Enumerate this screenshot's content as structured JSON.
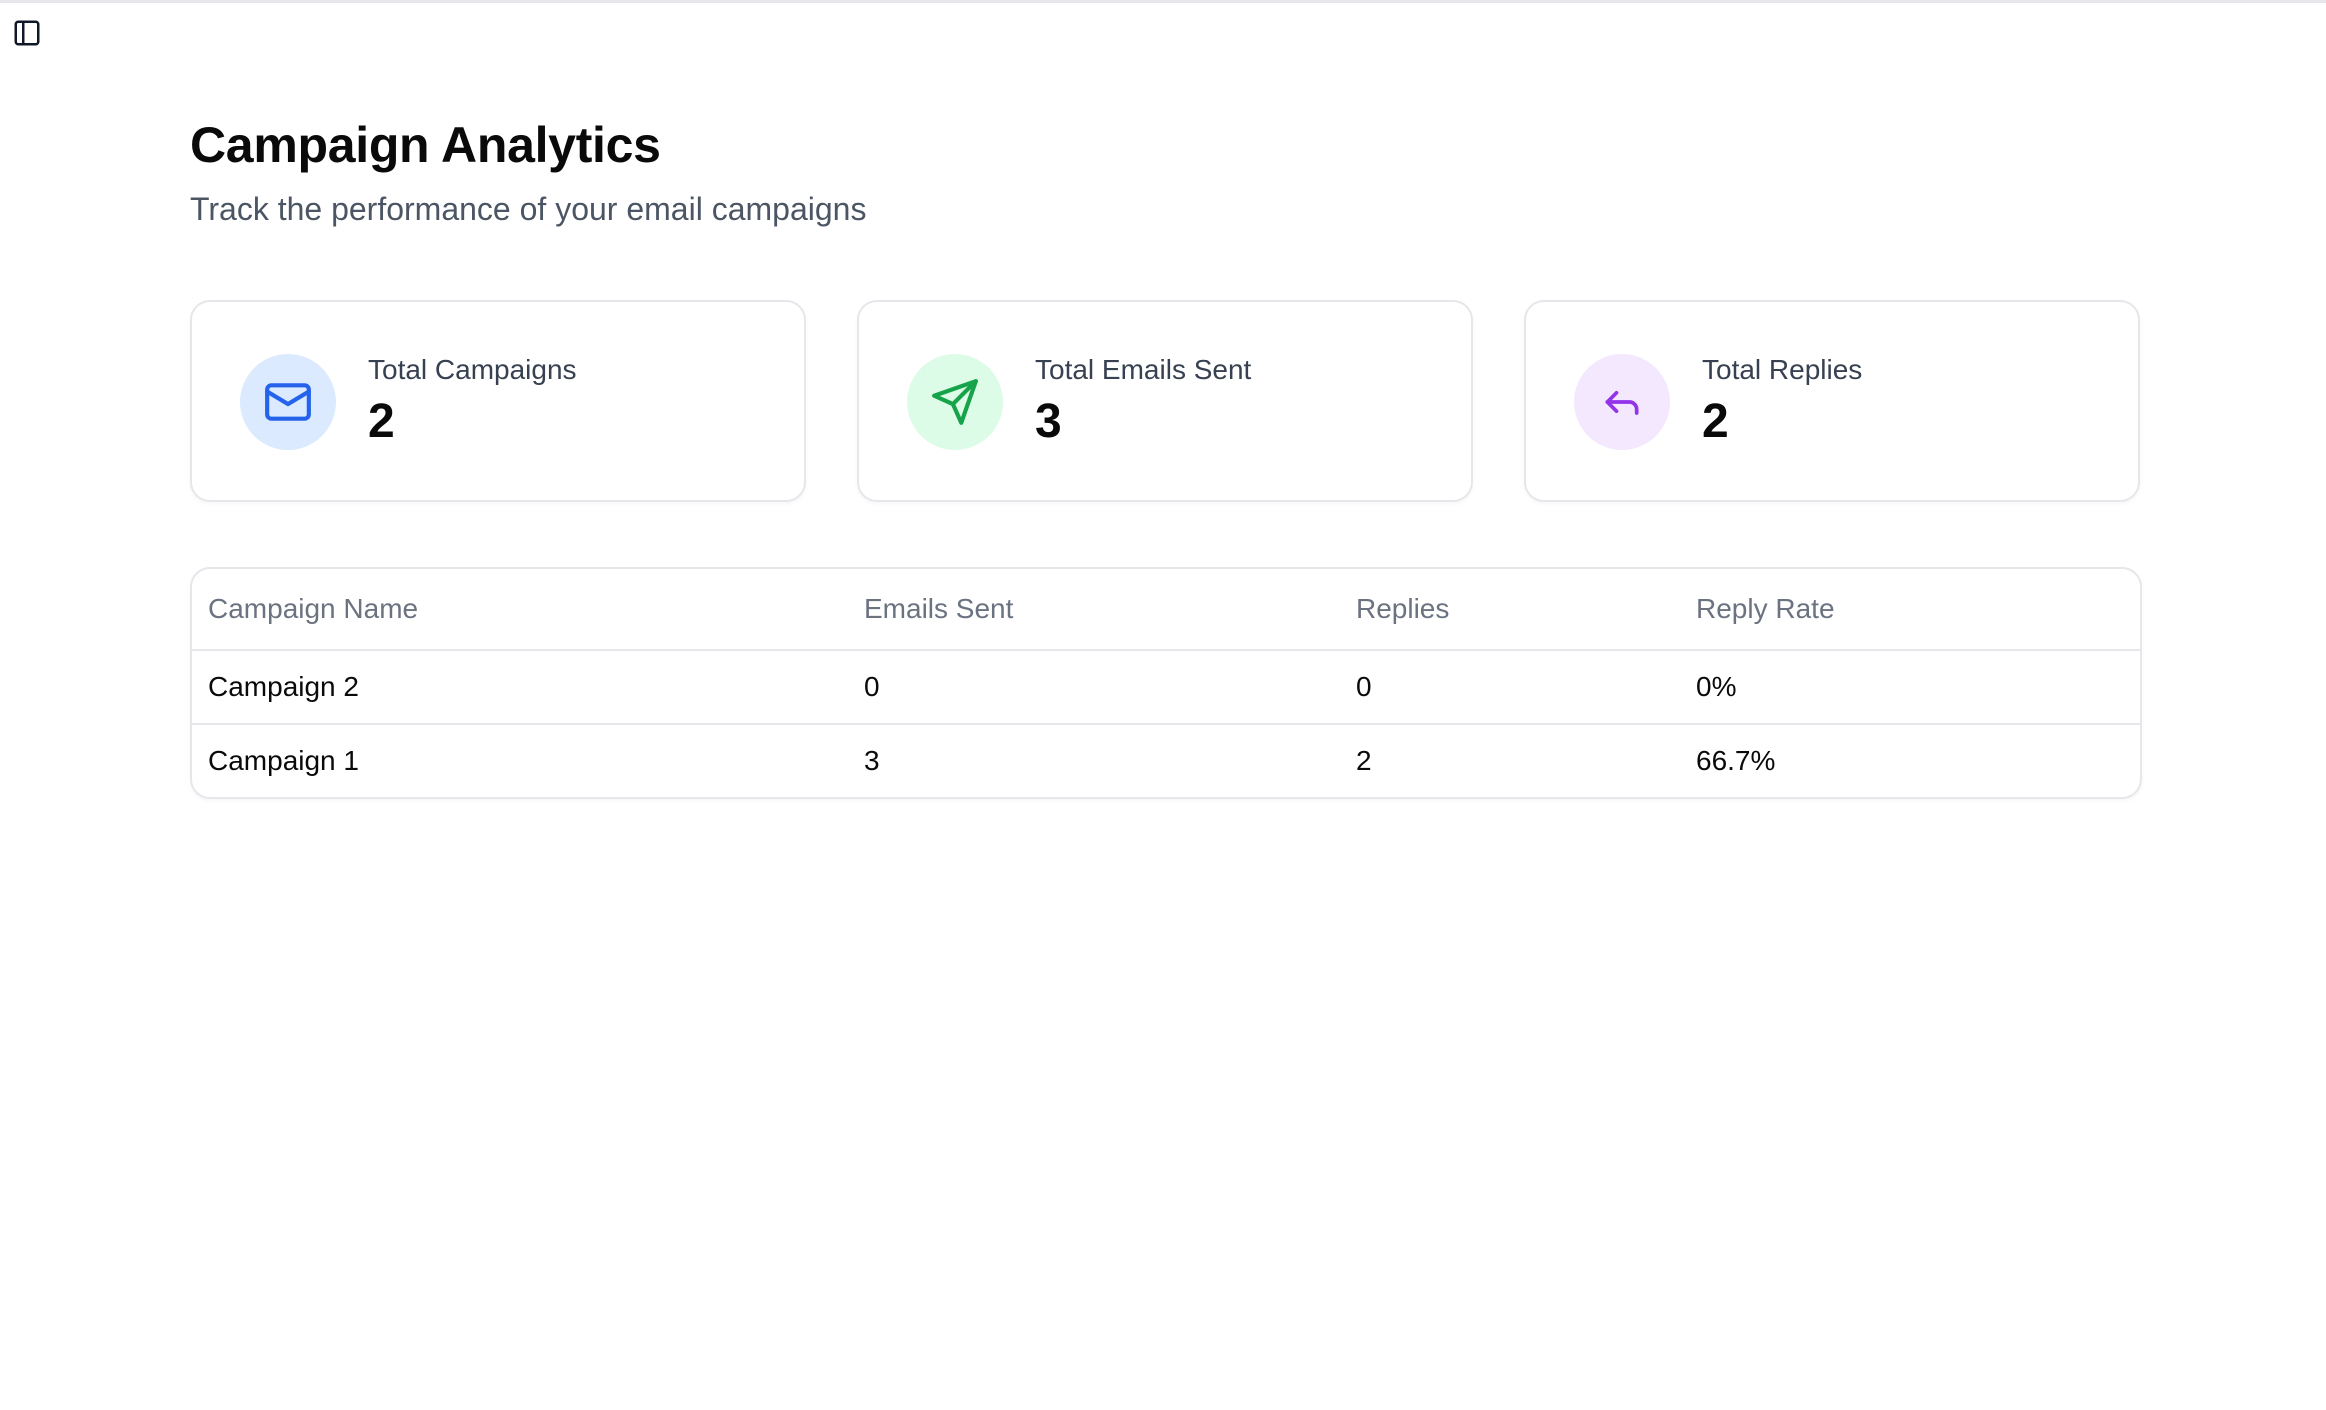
{
  "header": {
    "title": "Campaign Analytics",
    "subtitle": "Track the performance of your email campaigns"
  },
  "stats": [
    {
      "label": "Total Campaigns",
      "value": "2",
      "icon": "mail-icon",
      "color": "#2563eb",
      "bg": "#dbeafe"
    },
    {
      "label": "Total Emails Sent",
      "value": "3",
      "icon": "send-icon",
      "color": "#16a34a",
      "bg": "#dcfce7"
    },
    {
      "label": "Total Replies",
      "value": "2",
      "icon": "reply-icon",
      "color": "#9333ea",
      "bg": "#f3e8ff"
    }
  ],
  "table": {
    "columns": [
      "Campaign Name",
      "Emails Sent",
      "Replies",
      "Reply Rate"
    ],
    "rows": [
      [
        "Campaign 2",
        "0",
        "0",
        "0%"
      ],
      [
        "Campaign 1",
        "3",
        "2",
        "66.7%"
      ]
    ]
  }
}
